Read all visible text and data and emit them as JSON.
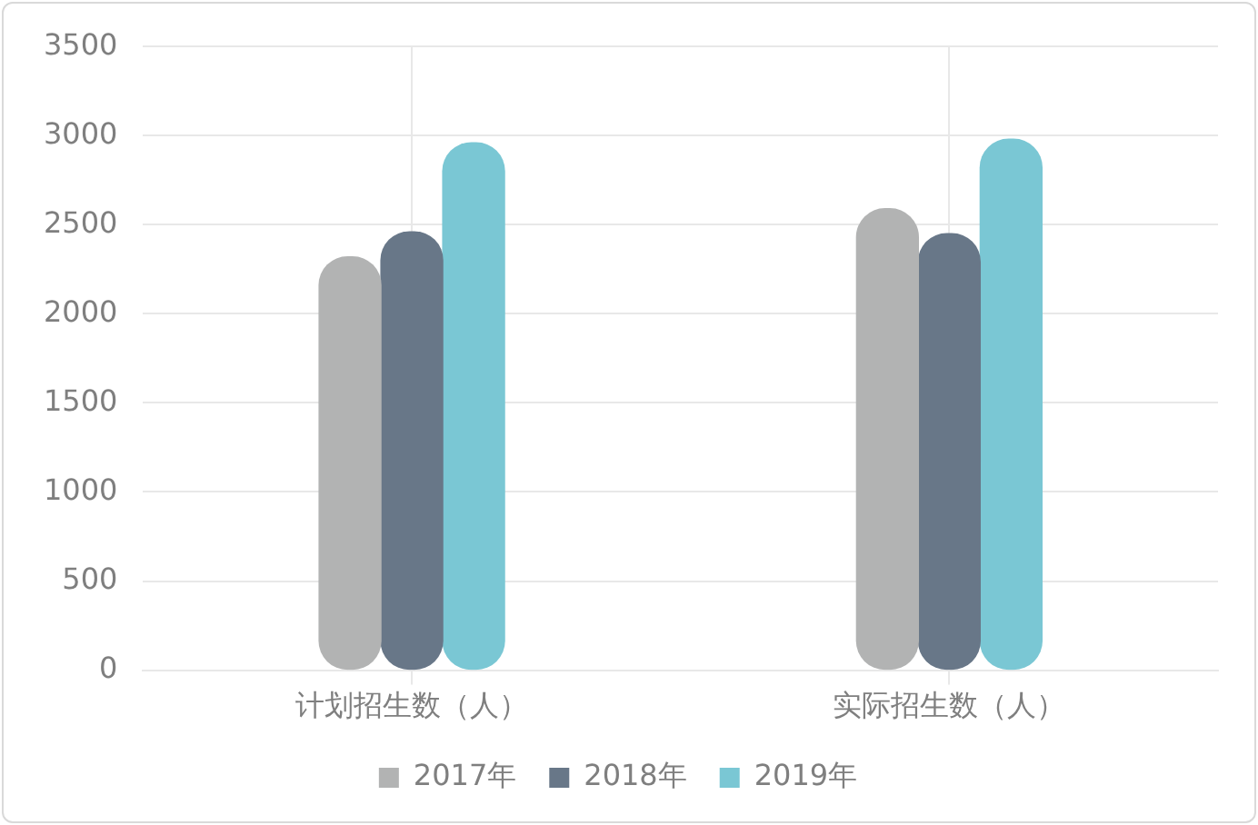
{
  "chart_data": {
    "type": "bar",
    "categories": [
      "计划招生数（人）",
      "实际招生数（人）"
    ],
    "series": [
      {
        "name": "2017年",
        "color": "#b2b3b3",
        "values": [
          2320,
          2590
        ]
      },
      {
        "name": "2018年",
        "color": "#687788",
        "values": [
          2460,
          2450
        ]
      },
      {
        "name": "2019年",
        "color": "#7ac7d4",
        "values": [
          2960,
          2980
        ]
      }
    ],
    "ylim": [
      0,
      3500
    ],
    "yticks": [
      0,
      500,
      1000,
      1500,
      2000,
      2500,
      3000,
      3500
    ],
    "grid": true,
    "legend": "bottom"
  }
}
